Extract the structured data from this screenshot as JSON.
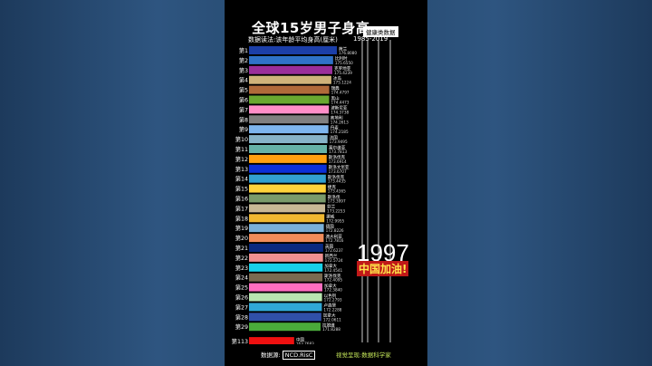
{
  "header": {
    "title": "全球15岁男子身高",
    "subtitle": "数据读法:该年龄平均身高(厘米)",
    "badge": "健康类数据",
    "range": "1985-2019"
  },
  "overlay": {
    "year": "1997",
    "slogan": "中国加油!"
  },
  "footer": {
    "source_label": "数据源:",
    "source_value": "NCD.RisC",
    "credit": "视觉呈现:数据科学家"
  },
  "chart_data": {
    "type": "bar",
    "orientation": "horizontal",
    "categories": [
      "荷兰",
      "比利时",
      "克罗地亚",
      "冰岛",
      "瑞典",
      "黑山",
      "波斯尼亚",
      "奥地利",
      "丹麦",
      "法国",
      "塞尔维亚",
      "斯洛伐克",
      "斯洛文尼亚",
      "斯洛伐克",
      "捷克",
      "斯洛伐",
      "芬兰",
      "挪威",
      "德国",
      "澳大利亚",
      "英国",
      "新西兰",
      "加拿大",
      "斯洛伐克",
      "加拿大",
      "以色列",
      "卢森堡",
      "加拿大",
      "拉脱维",
      "中国"
    ],
    "rank_labels": [
      "第1",
      "第2",
      "第3",
      "第4",
      "第5",
      "第6",
      "第7",
      "第8",
      "第9",
      "第10",
      "第11",
      "第12",
      "第13",
      "第14",
      "第15",
      "第16",
      "第17",
      "第18",
      "第19",
      "第20",
      "第21",
      "第22",
      "第23",
      "第24",
      "第25",
      "第26",
      "第27",
      "第28",
      "第29",
      "第113"
    ],
    "values": [
      176.808,
      175.655,
      175.4239,
      175.1224,
      174.4797,
      174.4473,
      174.3738,
      174.2613,
      174.2185,
      173.9495,
      173.7813,
      173.6914,
      173.6707,
      173.4435,
      173.4365,
      173.3997,
      173.2253,
      172.9955,
      172.8226,
      172.7816,
      172.6237,
      172.5724,
      172.4541,
      172.4095,
      172.384,
      172.2793,
      172.2288,
      172.0611,
      171.8288,
      163.7683
    ],
    "value_labels": [
      "176.8080",
      "175.6550",
      "175.4239",
      "175.1224",
      "174.4797",
      "174.4473",
      "174.3738",
      "174.2613",
      "174.2185",
      "173.9495",
      "173.7813",
      "173.6914",
      "173.6707",
      "173.4435",
      "173.4365",
      "173.3997",
      "173.2253",
      "172.9955",
      "172.8226",
      "172.7816",
      "172.6237",
      "172.5724",
      "172.4541",
      "172.4095",
      "172.3840",
      "172.2793",
      "172.2288",
      "172.0611",
      "171.8288",
      "163.7683"
    ],
    "colors": [
      "#1c3fa8",
      "#2f72c8",
      "#9a2e9a",
      "#cfb37a",
      "#b06a3a",
      "#6aa830",
      "#ff8ec8",
      "#808080",
      "#7eb6ee",
      "#88b4c8",
      "#66b2a6",
      "#ffa010",
      "#0c30d8",
      "#32a0d0",
      "#ffd23a",
      "#7a9a6a",
      "#c8b894",
      "#f0b830",
      "#7ab0d8",
      "#f08c5a",
      "#0a2a80",
      "#ef9090",
      "#1ad0e8",
      "#7a6a50",
      "#ff6ec0",
      "#b8e6b0",
      "#30a8d6",
      "#3050a8",
      "#4aaa3a",
      "#ee1010"
    ],
    "xlim": [
      150,
      176.808
    ]
  }
}
